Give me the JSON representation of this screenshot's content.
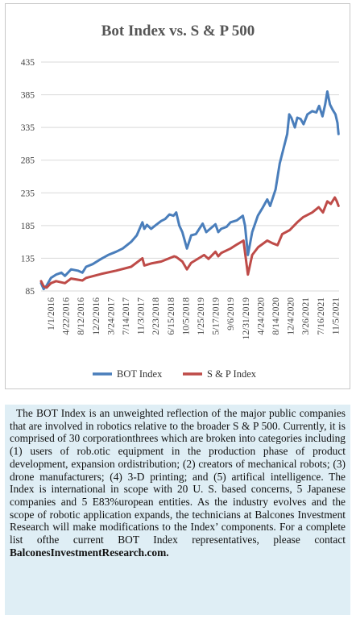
{
  "chart_data": {
    "type": "line",
    "title": "Bot Index vs. S & P 500",
    "xlabel": "",
    "ylabel": "",
    "ylim": [
      85,
      435
    ],
    "yticks": [
      85,
      135,
      185,
      235,
      285,
      335,
      385,
      435
    ],
    "xticks": [
      "1/1/2016",
      "4/22/2016",
      "8/12/2016",
      "12/2/2016",
      "3/24/2017",
      "7/14/2017",
      "11/3/2017",
      "2/23/2018",
      "6/15/2018",
      "10/5/2018",
      "1/25/2019",
      "5/17/2019",
      "9/6/2019",
      "12/27/2019",
      "4/17/2020",
      "8/7/2020",
      "11/27/2020",
      "3/19/2021",
      "7/9/2021",
      "10/29/2021"
    ],
    "xticks_display": [
      "1/1/2016",
      "4/22/2016",
      "8/12/2016",
      "12/2/2016",
      "3/24/2017",
      "7/14/2017",
      "11/3/2017",
      "2/23/2018",
      "6/15/2018",
      "10/5/2018",
      "1/25/2019",
      "5/17/2019",
      "9/6/2019",
      "12/31/2019",
      "4/24/2020",
      "8/14/2020",
      "12/4/2020",
      "3/26/2021",
      "7/16/2021",
      "11/5/2021"
    ],
    "x_start": "1/1/2016",
    "x_end": "2/1/2022",
    "grid": true,
    "legend": "bottom",
    "series": [
      {
        "name": "BOT Index",
        "color": "#4a7ebb",
        "points": [
          [
            "1/1/2016",
            97
          ],
          [
            "1/20/2016",
            88
          ],
          [
            "2/11/2016",
            93
          ],
          [
            "3/15/2016",
            105
          ],
          [
            "4/22/2016",
            110
          ],
          [
            "6/1/2016",
            113
          ],
          [
            "6/27/2016",
            108
          ],
          [
            "8/12/2016",
            118
          ],
          [
            "10/1/2016",
            116
          ],
          [
            "11/4/2016",
            113
          ],
          [
            "12/2/2016",
            122
          ],
          [
            "1/20/2017",
            126
          ],
          [
            "3/24/2017",
            134
          ],
          [
            "5/15/2017",
            140
          ],
          [
            "7/14/2017",
            145
          ],
          [
            "9/1/2017",
            150
          ],
          [
            "11/3/2017",
            160
          ],
          [
            "12/15/2017",
            170
          ],
          [
            "1/26/2018",
            190
          ],
          [
            "2/9/2018",
            180
          ],
          [
            "3/1/2018",
            186
          ],
          [
            "4/1/2018",
            180
          ],
          [
            "5/1/2018",
            185
          ],
          [
            "6/15/2018",
            192
          ],
          [
            "7/15/2018",
            195
          ],
          [
            "8/15/2018",
            202
          ],
          [
            "9/15/2018",
            200
          ],
          [
            "10/5/2018",
            205
          ],
          [
            "10/28/2018",
            185
          ],
          [
            "11/20/2018",
            175
          ],
          [
            "12/24/2018",
            150
          ],
          [
            "1/25/2019",
            170
          ],
          [
            "3/1/2019",
            172
          ],
          [
            "4/20/2019",
            188
          ],
          [
            "5/17/2019",
            175
          ],
          [
            "6/15/2019",
            180
          ],
          [
            "7/25/2019",
            187
          ],
          [
            "8/15/2019",
            175
          ],
          [
            "9/6/2019",
            180
          ],
          [
            "10/15/2019",
            183
          ],
          [
            "11/15/2019",
            190
          ],
          [
            "12/31/2019",
            193
          ],
          [
            "2/14/2020",
            200
          ],
          [
            "3/1/2020",
            185
          ],
          [
            "3/23/2020",
            140
          ],
          [
            "4/24/2020",
            175
          ],
          [
            "6/5/2020",
            200
          ],
          [
            "7/10/2020",
            212
          ],
          [
            "8/14/2020",
            225
          ],
          [
            "9/5/2020",
            215
          ],
          [
            "10/15/2020",
            240
          ],
          [
            "11/15/2020",
            280
          ],
          [
            "12/4/2020",
            295
          ],
          [
            "1/10/2021",
            325
          ],
          [
            "1/25/2021",
            355
          ],
          [
            "2/10/2021",
            350
          ],
          [
            "3/8/2021",
            335
          ],
          [
            "3/26/2021",
            350
          ],
          [
            "4/20/2021",
            348
          ],
          [
            "5/12/2021",
            340
          ],
          [
            "6/10/2021",
            355
          ],
          [
            "7/16/2021",
            360
          ],
          [
            "8/15/2021",
            358
          ],
          [
            "9/5/2021",
            368
          ],
          [
            "9/30/2021",
            352
          ],
          [
            "10/20/2021",
            370
          ],
          [
            "11/5/2021",
            390
          ],
          [
            "11/25/2021",
            370
          ],
          [
            "12/15/2021",
            362
          ],
          [
            "1/5/2022",
            355
          ],
          [
            "1/20/2022",
            342
          ],
          [
            "1/28/2022",
            325
          ]
        ]
      },
      {
        "name": "S & P Index",
        "color": "#be4b48",
        "points": [
          [
            "1/1/2016",
            100
          ],
          [
            "1/20/2016",
            92
          ],
          [
            "2/11/2016",
            90
          ],
          [
            "3/15/2016",
            97
          ],
          [
            "4/22/2016",
            100
          ],
          [
            "6/27/2016",
            97
          ],
          [
            "8/12/2016",
            104
          ],
          [
            "11/4/2016",
            101
          ],
          [
            "12/2/2016",
            105
          ],
          [
            "3/24/2017",
            111
          ],
          [
            "7/14/2017",
            116
          ],
          [
            "11/3/2017",
            122
          ],
          [
            "1/26/2018",
            135
          ],
          [
            "2/9/2018",
            124
          ],
          [
            "4/1/2018",
            127
          ],
          [
            "6/15/2018",
            130
          ],
          [
            "9/20/2018",
            138
          ],
          [
            "10/5/2018",
            137
          ],
          [
            "11/20/2018",
            130
          ],
          [
            "12/24/2018",
            118
          ],
          [
            "1/25/2019",
            128
          ],
          [
            "5/1/2019",
            140
          ],
          [
            "6/3/2019",
            134
          ],
          [
            "7/25/2019",
            145
          ],
          [
            "8/15/2019",
            138
          ],
          [
            "9/6/2019",
            143
          ],
          [
            "11/15/2019",
            150
          ],
          [
            "12/31/2019",
            156
          ],
          [
            "2/19/2020",
            162
          ],
          [
            "3/23/2020",
            110
          ],
          [
            "4/24/2020",
            140
          ],
          [
            "6/8/2020",
            152
          ],
          [
            "8/14/2020",
            162
          ],
          [
            "9/23/2020",
            158
          ],
          [
            "10/30/2020",
            155
          ],
          [
            "12/4/2020",
            172
          ],
          [
            "1/29/2021",
            178
          ],
          [
            "3/26/2021",
            190
          ],
          [
            "5/10/2021",
            198
          ],
          [
            "7/16/2021",
            205
          ],
          [
            "9/2/2021",
            213
          ],
          [
            "10/4/2021",
            205
          ],
          [
            "11/5/2021",
            222
          ],
          [
            "12/1/2021",
            218
          ],
          [
            "12/31/2021",
            228
          ],
          [
            "1/15/2022",
            222
          ],
          [
            "1/28/2022",
            215
          ]
        ]
      }
    ]
  },
  "body_text": {
    "main": "The BOT Index is an unweighted reflection of the major public companies that are involved in robotics relative to the broader S & P 500. Currently, it is comprised of 30 corporationthrees which are broken into categories including (1) users of rob.otic equipment in the production phase of product development, expansion ordistribution; (2) creators of mechanical robots; (3) drone manufacturers; (4) 3-D printing; and (5) artifical intelligence. The Index is international in scope with 20 U. S. based concerns, 5 Japanese companies and 5 E83%uropean entities. As the industry evolves and the scope of robotic application expands, the technicians at Balcones Investment Research will make modifications to the Index’ components. For a complete list ofthe current BOT Index representatives, please contact",
    "link": "BalconesInvestmentResearch.com."
  }
}
